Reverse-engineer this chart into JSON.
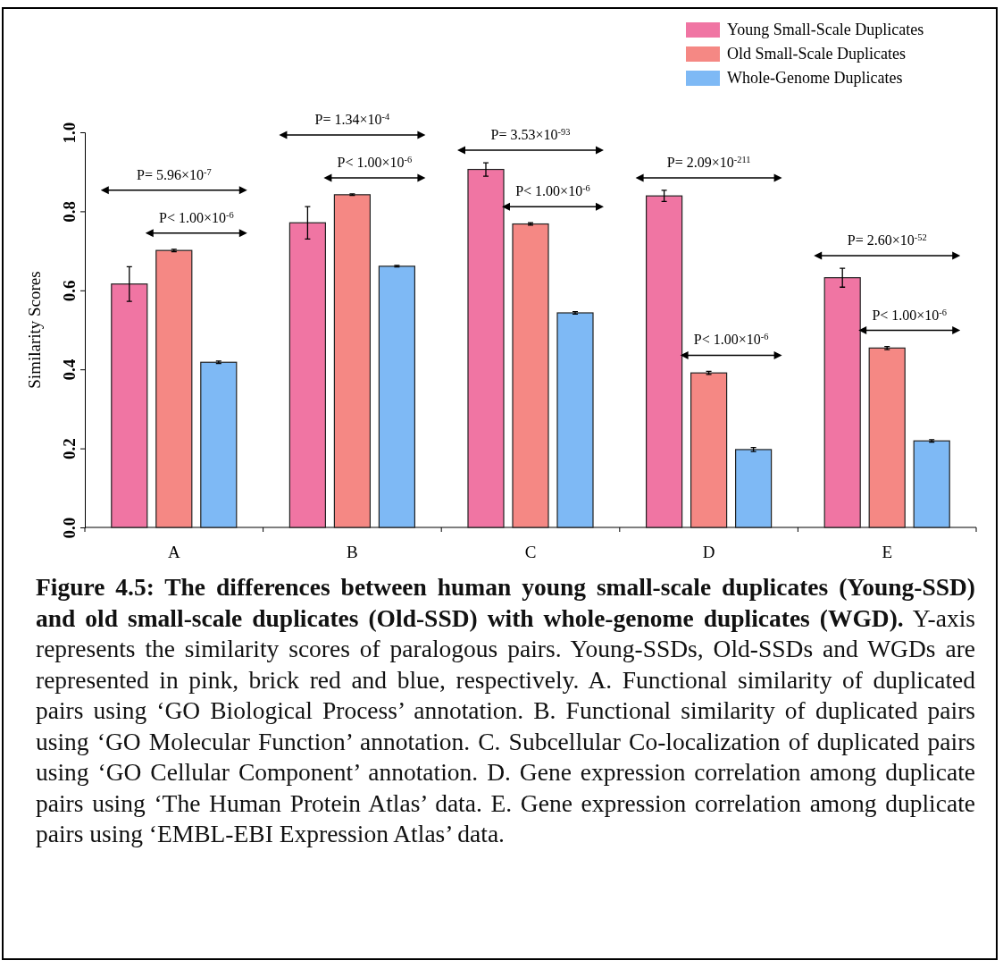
{
  "chart_data": {
    "type": "bar",
    "ylabel": "Similarity Scores",
    "categories": [
      "A",
      "B",
      "C",
      "D",
      "E"
    ],
    "series": [
      {
        "name": "Young Small-Scale Duplicates",
        "color": "#f075a3",
        "values": [
          0.616,
          0.771,
          0.906,
          0.839,
          0.632
        ],
        "errors": [
          0.044,
          0.041,
          0.017,
          0.014,
          0.024
        ]
      },
      {
        "name": "Old Small-Scale Duplicates",
        "color": "#f58884",
        "values": [
          0.701,
          0.842,
          0.768,
          0.391,
          0.454
        ],
        "errors": [
          0.003,
          0.002,
          0.003,
          0.004,
          0.004
        ]
      },
      {
        "name": "Whole-Genome Duplicates",
        "color": "#7eb9f5",
        "values": [
          0.418,
          0.661,
          0.543,
          0.197,
          0.219
        ],
        "errors": [
          0.003,
          0.002,
          0.003,
          0.005,
          0.003
        ]
      }
    ],
    "ylim": [
      0,
      1.0
    ],
    "yticks": [
      {
        "value": 0,
        "label": "0.0"
      },
      0.2,
      0.4,
      0.6,
      0.8,
      {
        "value": 1,
        "label": "1.0"
      }
    ],
    "legend": "top right",
    "grid": false,
    "annotations": [
      "P= 5.96×10$^{-7}$",
      "P< 1.00×10$^{-6}$",
      "P= 1.34×10$^{-4}$",
      "P< 1.00×10$^{-6}$",
      "P= 3.53×10$^{-93}$",
      "P< 1.00×10$^{-6}$",
      "P= 2.09×10$^{-211}$",
      "P< 1.00×10$^{-6}$",
      "P= 2.60×10$^{-52}$",
      "P< 1.00×10$^{-6}$",
      "Figure 4.5: The differences between human young small-scale duplicates (Young-SSD) and old small-scale duplicates (Old-SSD) with whole-genome duplicates (WGD).",
      "Y-axis represents the similarity scores of paralogous pairs. Young-SSDs, Old-SSDs and WGDs are represented in pink, brick red and blue, respectively. A. Functional similarity of duplicated pairs using ‘GO Biological Process’ annotation. B. Functional similarity of duplicated pairs using ‘GO Molecular Function’ annotation. C. Subcellular Co-localization of duplicated pairs using ‘GO Cellular Component’ annotation. D. Gene expression correlation among duplicate pairs using ‘The Human Protein Atlas’ data. E. Gene expression correlation among duplicate pairs using ‘EMBL-EBI Expression Atlas’ data."
    ]
  }
}
